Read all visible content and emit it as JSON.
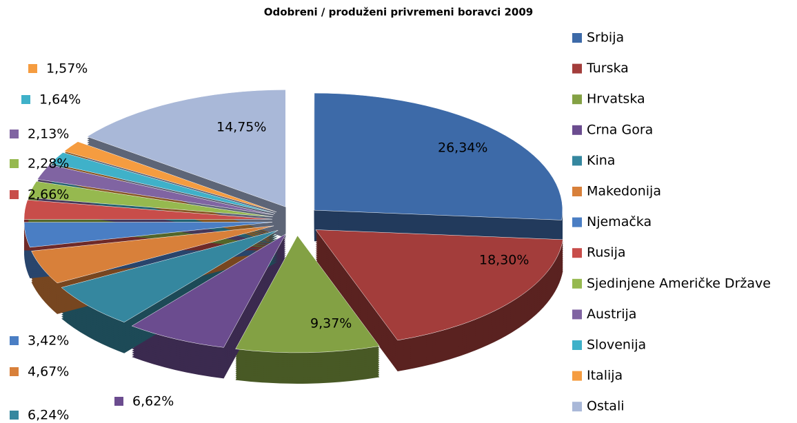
{
  "chart_data": {
    "type": "pie",
    "title": "Odobreni / produženi privremeni boravci 2009",
    "categories": [
      "Srbija",
      "Turska",
      "Hrvatska",
      "Crna Gora",
      "Kina",
      "Makedonija",
      "Njemačka",
      "Rusija",
      "Sjedinjene Američke Države",
      "Austrija",
      "Slovenija",
      "Italija",
      "Ostali"
    ],
    "values": [
      26.34,
      18.3,
      9.37,
      6.62,
      6.24,
      4.67,
      3.42,
      2.66,
      2.28,
      2.13,
      1.64,
      1.57,
      14.75
    ],
    "value_labels": [
      "26,34%",
      "18,30%",
      "9,37%",
      "6,62%",
      "6,24%",
      "4,67%",
      "3,42%",
      "2,66%",
      "2,28%",
      "2,13%",
      "1,64%",
      "1,57%",
      "14,75%"
    ],
    "colors": [
      "#3d6aa8",
      "#a33d3b",
      "#83a144",
      "#6b4c8f",
      "#35879f",
      "#d8803a",
      "#4a7ec4",
      "#c84d4a",
      "#96b94f",
      "#8064a2",
      "#3fb1c9",
      "#f59c40",
      "#a9b8d8"
    ],
    "legend": "right"
  }
}
